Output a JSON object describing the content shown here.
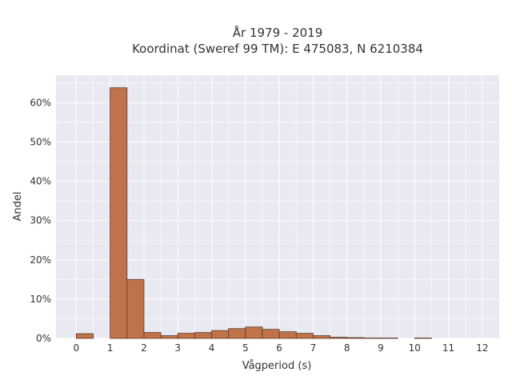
{
  "chart_data": {
    "type": "bar",
    "title_line1": "År 1979 - 2019",
    "title_line2": "Koordinat (Sweref 99 TM): E 475083, N 6210384",
    "xlabel": "Vågperiod (s)",
    "ylabel": "Andel",
    "x_ticks": [
      "0",
      "1",
      "2",
      "3",
      "4",
      "5",
      "6",
      "7",
      "8",
      "9",
      "10",
      "11",
      "12"
    ],
    "y_ticks": [
      "0%",
      "10%",
      "20%",
      "30%",
      "40%",
      "50%",
      "60%"
    ],
    "xlim": [
      -0.6,
      12.5
    ],
    "ylim": [
      0,
      0.67
    ],
    "bin_width": 0.5,
    "grid": true,
    "color": "#c0734a",
    "background": "#e9e9f1",
    "bins": [
      {
        "x0": 0.0,
        "value": 0.012
      },
      {
        "x0": 1.0,
        "value": 0.638
      },
      {
        "x0": 1.5,
        "value": 0.15
      },
      {
        "x0": 2.0,
        "value": 0.015
      },
      {
        "x0": 2.5,
        "value": 0.007
      },
      {
        "x0": 3.0,
        "value": 0.013
      },
      {
        "x0": 3.5,
        "value": 0.015
      },
      {
        "x0": 4.0,
        "value": 0.02
      },
      {
        "x0": 4.5,
        "value": 0.025
      },
      {
        "x0": 5.0,
        "value": 0.029
      },
      {
        "x0": 5.5,
        "value": 0.023
      },
      {
        "x0": 6.0,
        "value": 0.017
      },
      {
        "x0": 6.5,
        "value": 0.013
      },
      {
        "x0": 7.0,
        "value": 0.007
      },
      {
        "x0": 7.5,
        "value": 0.003
      },
      {
        "x0": 8.0,
        "value": 0.002
      },
      {
        "x0": 8.5,
        "value": 0.001
      },
      {
        "x0": 9.0,
        "value": 0.001
      },
      {
        "x0": 10.0,
        "value": 0.001
      }
    ]
  }
}
